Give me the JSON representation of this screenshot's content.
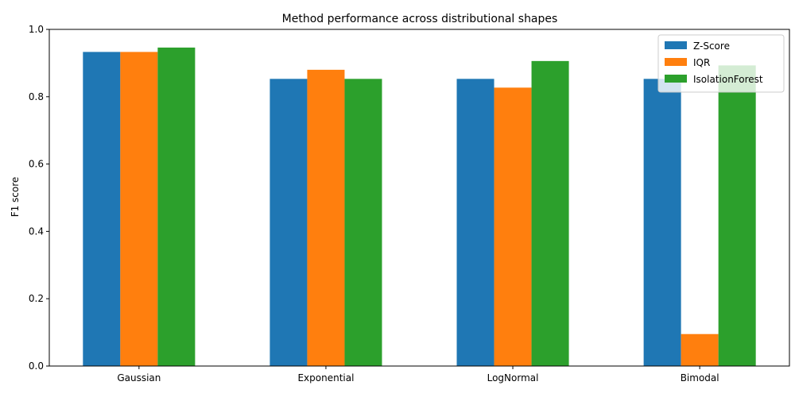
{
  "chart_data": {
    "type": "bar",
    "title": "Method performance across distributional shapes",
    "xlabel": "",
    "ylabel": "F1 score",
    "ylim": [
      0,
      1.0
    ],
    "yticks": [
      "0.0",
      "0.2",
      "0.4",
      "0.6",
      "0.8",
      "1.0"
    ],
    "categories": [
      "Gaussian",
      "Exponential",
      "LogNormal",
      "Bimodal"
    ],
    "series": [
      {
        "name": "Z-Score",
        "color": "#1f77b4",
        "values": [
          0.933,
          0.853,
          0.853,
          0.853
        ]
      },
      {
        "name": "IQR",
        "color": "#ff7f0e",
        "values": [
          0.933,
          0.88,
          0.827,
          0.095
        ]
      },
      {
        "name": "IsolationForest",
        "color": "#2ca02c",
        "values": [
          0.946,
          0.853,
          0.906,
          0.893
        ]
      }
    ],
    "grid": false,
    "legend_position": "top-right"
  }
}
